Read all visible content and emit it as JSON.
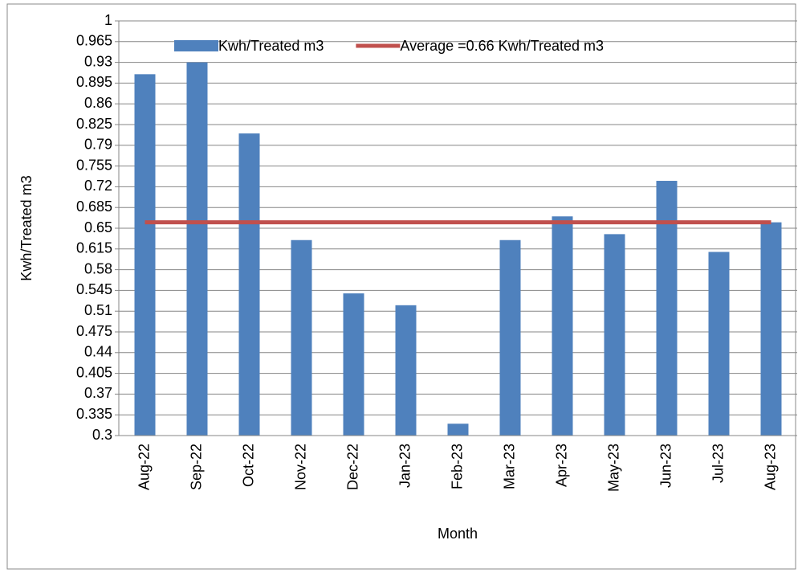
{
  "chart_data": {
    "type": "bar",
    "y_label": "Kwh/Treated m3",
    "x_label": "Month",
    "categories": [
      "Aug-22",
      "Sep-22",
      "Oct-22",
      "Nov-22",
      "Dec-22",
      "Jan-23",
      "Feb-23",
      "Mar-23",
      "Apr-23",
      "May-23",
      "Jun-23",
      "Jul-23",
      "Aug-23"
    ],
    "series": [
      {
        "name": "Kwh/Treated m3",
        "type": "bar",
        "color": "#4f81bd",
        "values": [
          0.91,
          0.93,
          0.81,
          0.63,
          0.54,
          0.52,
          0.32,
          0.63,
          0.67,
          0.64,
          0.73,
          0.61,
          0.66
        ]
      },
      {
        "name": "Average =0.66 Kwh/Treated m3",
        "type": "line",
        "color": "#c0504d",
        "values": [
          0.66,
          0.66,
          0.66,
          0.66,
          0.66,
          0.66,
          0.66,
          0.66,
          0.66,
          0.66,
          0.66,
          0.66,
          0.66
        ]
      }
    ],
    "ylim": [
      0.3,
      1
    ],
    "yticks": [
      0.3,
      0.335,
      0.37,
      0.405,
      0.44,
      0.475,
      0.51,
      0.545,
      0.58,
      0.615,
      0.65,
      0.685,
      0.72,
      0.755,
      0.79,
      0.825,
      0.86,
      0.895,
      0.93,
      0.965,
      1
    ],
    "grid": true,
    "legend": "top"
  }
}
